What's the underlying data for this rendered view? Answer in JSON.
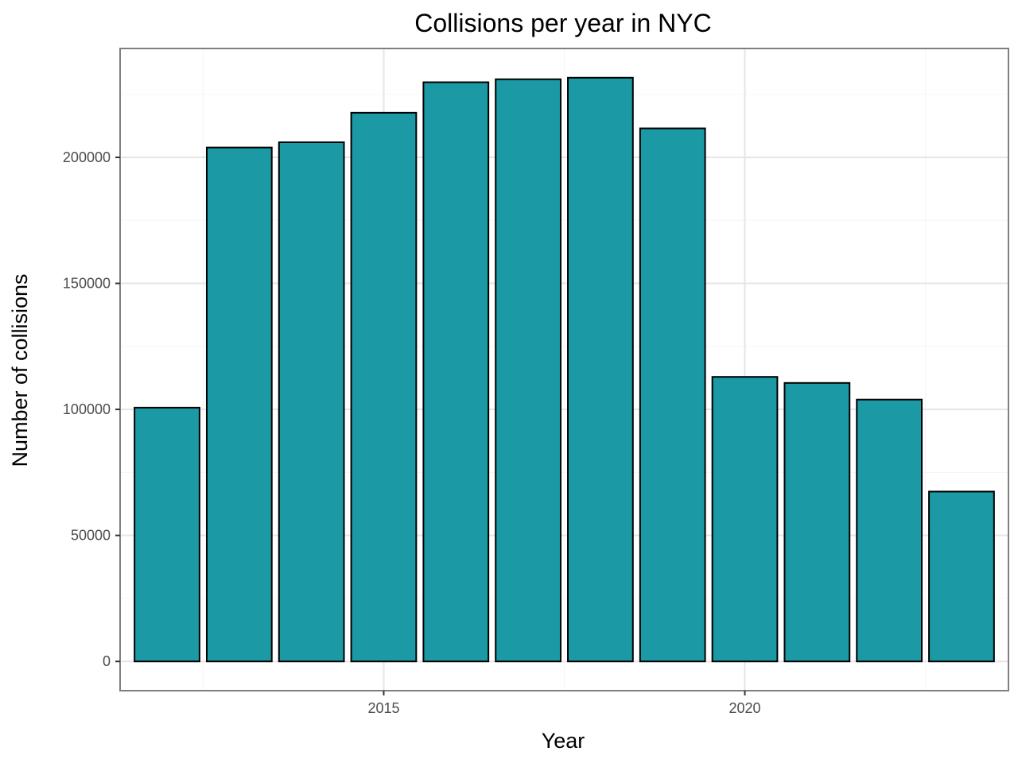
{
  "chart_data": {
    "type": "bar",
    "title": "Collisions per year in NYC",
    "xlabel": "Year",
    "ylabel": "Number of collisions",
    "x": [
      2012,
      2013,
      2014,
      2015,
      2016,
      2017,
      2018,
      2019,
      2020,
      2021,
      2022,
      2023
    ],
    "values": [
      100700,
      203900,
      206000,
      217700,
      229800,
      231000,
      231600,
      211500,
      112900,
      110500,
      103900,
      67400
    ],
    "xlim": [
      2011.35,
      2023.65
    ],
    "ylim": [
      -11600,
      243200
    ],
    "x_ticks": [
      2015,
      2020
    ],
    "x_tick_labels": [
      "2015",
      "2020"
    ],
    "y_ticks": [
      0,
      50000,
      100000,
      150000,
      200000
    ],
    "y_tick_labels": [
      "0",
      "50000",
      "100000",
      "150000",
      "200000"
    ],
    "grid": true,
    "bar_color": "#1b9aa6",
    "bar_edge_color": "#000000",
    "panel_border_color": "#7f7f7f",
    "grid_color": "#e5e5e5"
  }
}
